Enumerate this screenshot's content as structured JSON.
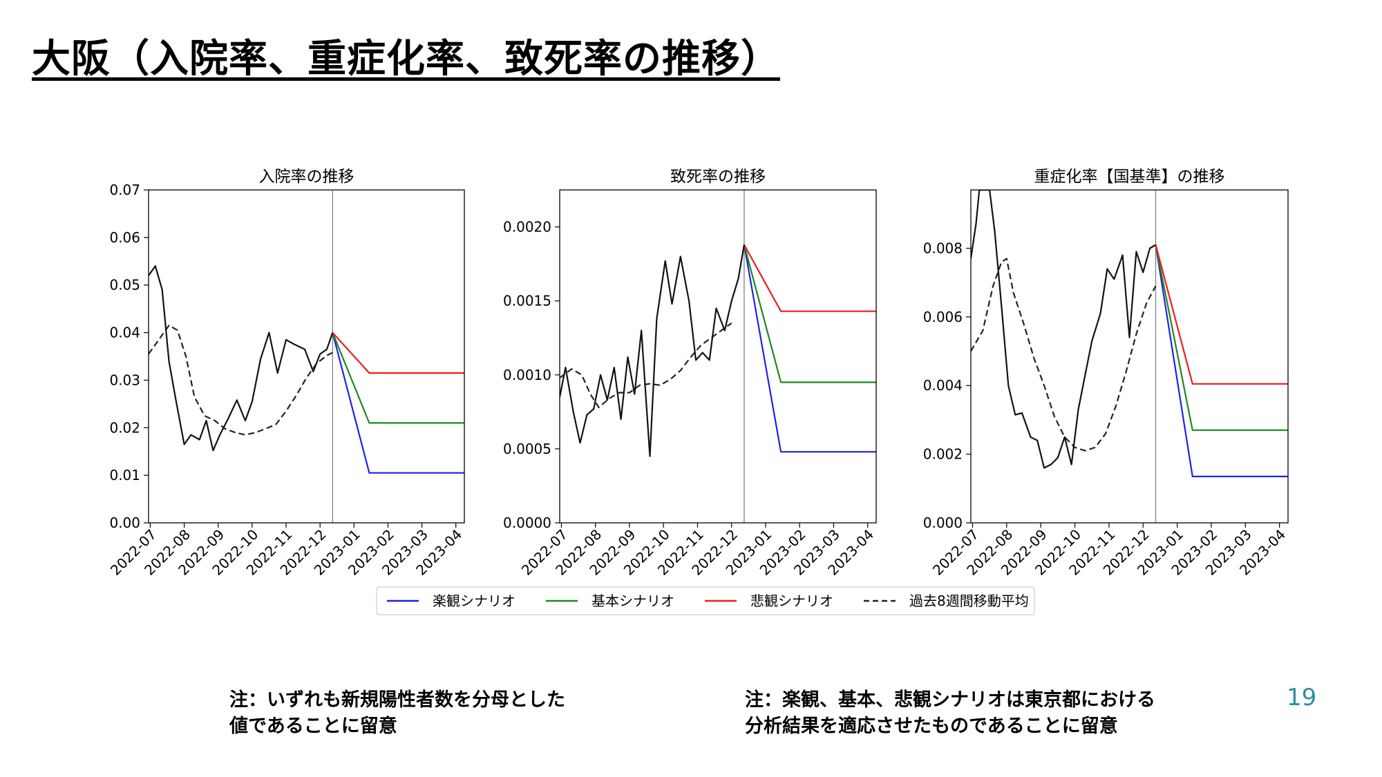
{
  "title": "大阪（入院率、重症化率、致死率の推移）",
  "colors": {
    "optimistic": "#2020e6",
    "base": "#1a8a1a",
    "pessimistic": "#ee1c1c",
    "actual": "#111111",
    "moving_avg": "#222222",
    "divider": "#808080"
  },
  "legend": {
    "items": [
      {
        "label": "楽観シナリオ",
        "key": "optimistic",
        "style": "solid"
      },
      {
        "label": "基本シナリオ",
        "key": "base",
        "style": "solid"
      },
      {
        "label": "悲観シナリオ",
        "key": "pessimistic",
        "style": "solid"
      },
      {
        "label": "過去8週間移動平均",
        "key": "moving_avg",
        "style": "dashed"
      }
    ]
  },
  "chart_data": [
    {
      "type": "line",
      "title": "入院率の推移",
      "xticks": [
        "2022-07",
        "2022-08",
        "2022-09",
        "2022-10",
        "2022-11",
        "2022-12",
        "2023-01",
        "2023-02",
        "2023-03",
        "2023-04"
      ],
      "xlim": [
        -0.05,
        9.25
      ],
      "ylim": [
        0,
        0.07
      ],
      "yticks": [
        "0.00",
        "0.01",
        "0.02",
        "0.03",
        "0.04",
        "0.05",
        "0.06",
        "0.07"
      ],
      "divider_x": 5.37,
      "series": [
        {
          "key": "actual",
          "points": [
            [
              -0.05,
              0.052
            ],
            [
              0.15,
              0.054
            ],
            [
              0.35,
              0.049
            ],
            [
              0.55,
              0.034
            ],
            [
              0.75,
              0.026
            ],
            [
              1.0,
              0.0165
            ],
            [
              1.2,
              0.0185
            ],
            [
              1.45,
              0.0175
            ],
            [
              1.65,
              0.0215
            ],
            [
              1.85,
              0.0152
            ],
            [
              2.05,
              0.0185
            ],
            [
              2.3,
              0.022
            ],
            [
              2.55,
              0.0258
            ],
            [
              2.8,
              0.0215
            ],
            [
              3.0,
              0.0255
            ],
            [
              3.25,
              0.0345
            ],
            [
              3.5,
              0.04
            ],
            [
              3.75,
              0.0315
            ],
            [
              4.0,
              0.0385
            ],
            [
              4.25,
              0.0375
            ],
            [
              4.55,
              0.0365
            ],
            [
              4.8,
              0.0318
            ],
            [
              5.0,
              0.0355
            ],
            [
              5.2,
              0.0365
            ],
            [
              5.37,
              0.04
            ]
          ]
        },
        {
          "key": "moving_avg",
          "points": [
            [
              -0.05,
              0.0355
            ],
            [
              0.3,
              0.039
            ],
            [
              0.55,
              0.0415
            ],
            [
              0.8,
              0.0405
            ],
            [
              1.05,
              0.035
            ],
            [
              1.3,
              0.0265
            ],
            [
              1.6,
              0.0225
            ],
            [
              1.9,
              0.0215
            ],
            [
              2.2,
              0.0198
            ],
            [
              2.5,
              0.019
            ],
            [
              2.8,
              0.0185
            ],
            [
              3.1,
              0.019
            ],
            [
              3.4,
              0.0198
            ],
            [
              3.7,
              0.0207
            ],
            [
              4.0,
              0.0235
            ],
            [
              4.3,
              0.0268
            ],
            [
              4.6,
              0.0305
            ],
            [
              4.9,
              0.0335
            ],
            [
              5.2,
              0.0352
            ],
            [
              5.37,
              0.0358
            ]
          ]
        },
        {
          "key": "optimistic",
          "points": [
            [
              5.37,
              0.04
            ],
            [
              6.45,
              0.0105
            ],
            [
              9.25,
              0.0105
            ]
          ]
        },
        {
          "key": "base",
          "points": [
            [
              5.37,
              0.04
            ],
            [
              6.45,
              0.021
            ],
            [
              9.25,
              0.021
            ]
          ]
        },
        {
          "key": "pessimistic",
          "points": [
            [
              5.37,
              0.04
            ],
            [
              6.45,
              0.0315
            ],
            [
              9.25,
              0.0315
            ]
          ]
        }
      ]
    },
    {
      "type": "line",
      "title": "致死率の推移",
      "xticks": [
        "2022-07",
        "2022-08",
        "2022-09",
        "2022-10",
        "2022-11",
        "2022-12",
        "2023-01",
        "2023-02",
        "2023-03",
        "2023-04"
      ],
      "xlim": [
        -0.05,
        9.25
      ],
      "ylim": [
        0,
        0.00225
      ],
      "yticks": [
        "0.0000",
        "0.0005",
        "0.0010",
        "0.0015",
        "0.0020"
      ],
      "divider_x": 5.37,
      "series": [
        {
          "key": "actual",
          "points": [
            [
              -0.05,
              0.00085
            ],
            [
              0.12,
              0.00105
            ],
            [
              0.35,
              0.00075
            ],
            [
              0.55,
              0.00054
            ],
            [
              0.75,
              0.00073
            ],
            [
              0.95,
              0.00077
            ],
            [
              1.15,
              0.001
            ],
            [
              1.35,
              0.00083
            ],
            [
              1.55,
              0.00105
            ],
            [
              1.75,
              0.0007
            ],
            [
              1.95,
              0.00112
            ],
            [
              2.15,
              0.00087
            ],
            [
              2.35,
              0.0013
            ],
            [
              2.6,
              0.00045
            ],
            [
              2.8,
              0.00138
            ],
            [
              3.05,
              0.00177
            ],
            [
              3.25,
              0.00148
            ],
            [
              3.5,
              0.0018
            ],
            [
              3.75,
              0.0015
            ],
            [
              3.95,
              0.0011
            ],
            [
              4.15,
              0.00115
            ],
            [
              4.35,
              0.0011
            ],
            [
              4.55,
              0.00145
            ],
            [
              4.8,
              0.0013
            ],
            [
              5.0,
              0.0015
            ],
            [
              5.2,
              0.00165
            ],
            [
              5.37,
              0.00188
            ]
          ]
        },
        {
          "key": "moving_avg",
          "points": [
            [
              -0.05,
              0.00098
            ],
            [
              0.3,
              0.00104
            ],
            [
              0.6,
              0.001
            ],
            [
              0.85,
              0.00087
            ],
            [
              1.1,
              0.00078
            ],
            [
              1.4,
              0.00084
            ],
            [
              1.7,
              0.00088
            ],
            [
              2.0,
              0.00088
            ],
            [
              2.3,
              0.00093
            ],
            [
              2.6,
              0.00094
            ],
            [
              2.9,
              0.00093
            ],
            [
              3.2,
              0.00097
            ],
            [
              3.5,
              0.00103
            ],
            [
              3.8,
              0.00112
            ],
            [
              4.1,
              0.0012
            ],
            [
              4.4,
              0.00125
            ],
            [
              4.7,
              0.0013
            ],
            [
              5.0,
              0.00135
            ],
            [
              5.0,
              0.00135
            ]
          ]
        },
        {
          "key": "optimistic",
          "points": [
            [
              5.37,
              0.00188
            ],
            [
              6.45,
              0.00048
            ],
            [
              9.25,
              0.00048
            ]
          ]
        },
        {
          "key": "base",
          "points": [
            [
              5.37,
              0.00188
            ],
            [
              6.45,
              0.00095
            ],
            [
              9.25,
              0.00095
            ]
          ]
        },
        {
          "key": "pessimistic",
          "points": [
            [
              5.37,
              0.00188
            ],
            [
              6.45,
              0.00143
            ],
            [
              9.25,
              0.00143
            ]
          ]
        }
      ]
    },
    {
      "type": "line",
      "title": "重症化率【国基準】の推移",
      "xticks": [
        "2022-07",
        "2022-08",
        "2022-09",
        "2022-10",
        "2022-11",
        "2022-12",
        "2023-01",
        "2023-02",
        "2023-03",
        "2023-04"
      ],
      "xlim": [
        -0.05,
        9.25
      ],
      "ylim": [
        0,
        0.0097
      ],
      "yticks": [
        "0.000",
        "0.002",
        "0.004",
        "0.006",
        "0.008"
      ],
      "divider_x": 5.37,
      "series": [
        {
          "key": "actual",
          "points": [
            [
              -0.05,
              0.0077
            ],
            [
              0.1,
              0.0087
            ],
            [
              0.2,
              0.0097
            ],
            [
              0.5,
              0.0097
            ],
            [
              0.65,
              0.0085
            ],
            [
              0.85,
              0.0063
            ],
            [
              1.05,
              0.004
            ],
            [
              1.25,
              0.00315
            ],
            [
              1.45,
              0.0032
            ],
            [
              1.7,
              0.0025
            ],
            [
              1.9,
              0.0024
            ],
            [
              2.1,
              0.0016
            ],
            [
              2.3,
              0.0017
            ],
            [
              2.5,
              0.0019
            ],
            [
              2.7,
              0.0025
            ],
            [
              2.9,
              0.0017
            ],
            [
              3.1,
              0.0033
            ],
            [
              3.3,
              0.0043
            ],
            [
              3.5,
              0.0053
            ],
            [
              3.75,
              0.0061
            ],
            [
              3.95,
              0.0074
            ],
            [
              4.15,
              0.0071
            ],
            [
              4.4,
              0.0078
            ],
            [
              4.6,
              0.0054
            ],
            [
              4.8,
              0.0079
            ],
            [
              5.0,
              0.0073
            ],
            [
              5.2,
              0.008
            ],
            [
              5.37,
              0.0081
            ]
          ]
        },
        {
          "key": "moving_avg",
          "points": [
            [
              -0.05,
              0.005
            ],
            [
              0.3,
              0.0056
            ],
            [
              0.6,
              0.0069
            ],
            [
              0.85,
              0.0076
            ],
            [
              1.0,
              0.0077
            ],
            [
              1.2,
              0.0067
            ],
            [
              1.5,
              0.0058
            ],
            [
              1.8,
              0.0048
            ],
            [
              2.1,
              0.004
            ],
            [
              2.4,
              0.0031
            ],
            [
              2.7,
              0.0025
            ],
            [
              3.0,
              0.0022
            ],
            [
              3.3,
              0.0021
            ],
            [
              3.6,
              0.0022
            ],
            [
              3.9,
              0.0026
            ],
            [
              4.2,
              0.0034
            ],
            [
              4.5,
              0.0044
            ],
            [
              4.8,
              0.0055
            ],
            [
              5.1,
              0.0064
            ],
            [
              5.37,
              0.0069
            ]
          ]
        },
        {
          "key": "optimistic",
          "points": [
            [
              5.37,
              0.0081
            ],
            [
              6.45,
              0.00135
            ],
            [
              9.25,
              0.00135
            ]
          ]
        },
        {
          "key": "base",
          "points": [
            [
              5.37,
              0.0081
            ],
            [
              6.45,
              0.0027
            ],
            [
              9.25,
              0.0027
            ]
          ]
        },
        {
          "key": "pessimistic",
          "points": [
            [
              5.37,
              0.0081
            ],
            [
              6.45,
              0.00405
            ],
            [
              9.25,
              0.00405
            ]
          ]
        }
      ]
    }
  ],
  "notes": [
    "注：いずれも新規陽性者数を分母とした\n値であることに留意",
    "注：楽観、基本、悲観シナリオは東京都における\n分析結果を適応させたものであることに留意"
  ],
  "page_number": "19"
}
